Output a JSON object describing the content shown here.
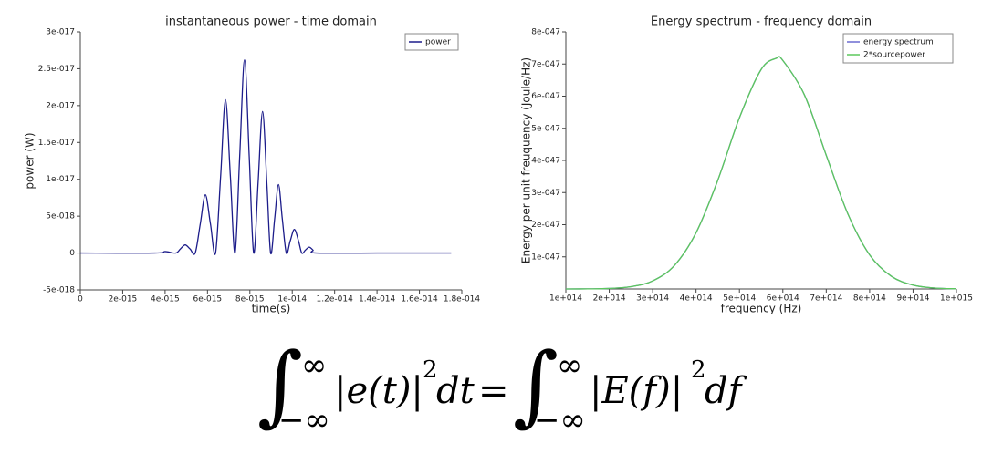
{
  "chart_data": [
    {
      "type": "line",
      "title": "instantaneous power - time domain",
      "xlabel": "time(s)",
      "ylabel": "power (W)",
      "x": [
        0,
        3.5e-15,
        4e-15,
        4.5e-15,
        4.72e-15,
        4.95e-15,
        5.18e-15,
        5.42e-15,
        5.66e-15,
        5.9e-15,
        6.14e-15,
        6.38e-15,
        6.62e-15,
        6.85e-15,
        7.08e-15,
        7.3e-15,
        7.52e-15,
        7.75e-15,
        7.97e-15,
        8.18e-15,
        8.39e-15,
        8.6e-15,
        8.8e-15,
        8.98e-15,
        9.17e-15,
        9.35e-15,
        9.53e-15,
        9.72e-15,
        9.9e-15,
        1.01e-14,
        1.03e-14,
        1.045e-14,
        1.062e-14,
        1.08e-14,
        1.098e-14,
        1.115e-14,
        1.4e-14,
        1.75e-14
      ],
      "series": [
        {
          "name": "power",
          "color": "#1c1c8a",
          "values": [
            0,
            0,
            2e-19,
            0,
            5.5e-19,
            1.1e-18,
            5.5e-19,
            0,
            3.95e-18,
            7.9e-18,
            3.95e-18,
            0,
            1.04e-17,
            2.08e-17,
            1.04e-17,
            0,
            1.31e-17,
            2.62e-17,
            1.31e-17,
            0,
            9.6e-18,
            1.92e-17,
            9.6e-18,
            0,
            4.65e-18,
            9.3e-18,
            4.65e-18,
            0,
            1.6e-18,
            3.2e-18,
            1.6e-18,
            0,
            4e-19,
            8e-19,
            4e-19,
            0,
            0,
            0
          ]
        }
      ],
      "xlim": [
        0,
        1.8e-14
      ],
      "xticks": [
        0,
        {
          "value": 2e-15,
          "label": "2e-015"
        },
        {
          "value": 4e-15,
          "label": "4e-015"
        },
        {
          "value": 6e-15,
          "label": "6e-015"
        },
        {
          "value": 8e-15,
          "label": "8e-015"
        },
        {
          "value": 1e-14,
          "label": "1e-014"
        },
        {
          "value": 1.2e-14,
          "label": "1.2e-014"
        },
        {
          "value": 1.4e-14,
          "label": "1.4e-014"
        },
        {
          "value": 1.6e-14,
          "label": "1.6e-014"
        },
        {
          "value": 1.8e-14,
          "label": "1.8e-014"
        }
      ],
      "ylim": [
        -5e-18,
        3e-17
      ],
      "yticks": [
        {
          "value": -5e-18,
          "label": "-5e-018"
        },
        0,
        {
          "value": 5e-18,
          "label": "5e-018"
        },
        {
          "value": 1e-17,
          "label": "1e-017"
        },
        {
          "value": 1.5e-17,
          "label": "1.5e-017"
        },
        {
          "value": 2e-17,
          "label": "2e-017"
        },
        {
          "value": 2.5e-17,
          "label": "2.5e-017"
        },
        {
          "value": 3e-17,
          "label": "3e-017"
        }
      ],
      "legend": "upper right"
    },
    {
      "type": "line",
      "title": "Energy spectrum - frequency domain",
      "xlabel": "frequency (Hz)",
      "ylabel": "Energy per unit freuquency (Joule/Hz)",
      "x": [
        100000000000000.0,
        150000000000000.0,
        200000000000000.0,
        250000000000000.0,
        300000000000000.0,
        350000000000000.0,
        400000000000000.0,
        450000000000000.0,
        500000000000000.0,
        550000000000000.0,
        585000000000000.0,
        600000000000000.0,
        650000000000000.0,
        700000000000000.0,
        750000000000000.0,
        800000000000000.0,
        850000000000000.0,
        900000000000000.0,
        950000000000000.0,
        1000000000000000.0
      ],
      "series": [
        {
          "name": "energy spectrum",
          "color": "#6a6ad0",
          "values": [
            0,
            3e-50,
            1.6e-49,
            7e-49,
            2.5e-48,
            7.3e-48,
            1.75e-47,
            3.38e-47,
            5.33e-47,
            6.83e-47,
            7.18e-47,
            7.11e-47,
            6.03e-47,
            4.16e-47,
            2.33e-47,
            1.06e-47,
            3.95e-48,
            1.2e-48,
            2.9e-49,
            6e-50
          ]
        },
        {
          "name": "2*sourcepower",
          "color": "#5cc85c",
          "values": [
            0,
            3e-50,
            1.6e-49,
            7e-49,
            2.5e-48,
            7.3e-48,
            1.75e-47,
            3.38e-47,
            5.33e-47,
            6.83e-47,
            7.18e-47,
            7.11e-47,
            6.03e-47,
            4.16e-47,
            2.33e-47,
            1.06e-47,
            3.95e-48,
            1.2e-48,
            2.9e-49,
            6e-50
          ]
        }
      ],
      "xlim": [
        100000000000000.0,
        1000000000000000.0
      ],
      "xticks": [
        {
          "value": 100000000000000.0,
          "label": "1e+014"
        },
        {
          "value": 200000000000000.0,
          "label": "2e+014"
        },
        {
          "value": 300000000000000.0,
          "label": "3e+014"
        },
        {
          "value": 400000000000000.0,
          "label": "4e+014"
        },
        {
          "value": 500000000000000.0,
          "label": "5e+014"
        },
        {
          "value": 600000000000000.0,
          "label": "6e+014"
        },
        {
          "value": 700000000000000.0,
          "label": "7e+014"
        },
        {
          "value": 800000000000000.0,
          "label": "8e+014"
        },
        {
          "value": 900000000000000.0,
          "label": "9e+014"
        },
        {
          "value": 1000000000000000.0,
          "label": "1e+015"
        }
      ],
      "ylim": [
        0,
        8e-47
      ],
      "yticks": [
        {
          "value": 1e-47,
          "label": "1e-047"
        },
        {
          "value": 2e-47,
          "label": "2e-047"
        },
        {
          "value": 3e-47,
          "label": "3e-047"
        },
        {
          "value": 4e-47,
          "label": "4e-047"
        },
        {
          "value": 5e-47,
          "label": "5e-047"
        },
        {
          "value": 6e-47,
          "label": "6e-047"
        },
        {
          "value": 7e-47,
          "label": "7e-047"
        },
        {
          "value": 8e-47,
          "label": "8e-047"
        }
      ],
      "legend": "upper right"
    }
  ],
  "equation": {
    "lhs": {
      "integral": "∫",
      "upper": "∞",
      "lower": "−∞",
      "integrand": "|e(t)|",
      "power": "2",
      "differential": "dt"
    },
    "equals": "=",
    "rhs": {
      "integral": "∫",
      "upper": "∞",
      "lower": "−∞",
      "integrand": "|E(f)|",
      "power": "2",
      "differential": "df"
    }
  }
}
